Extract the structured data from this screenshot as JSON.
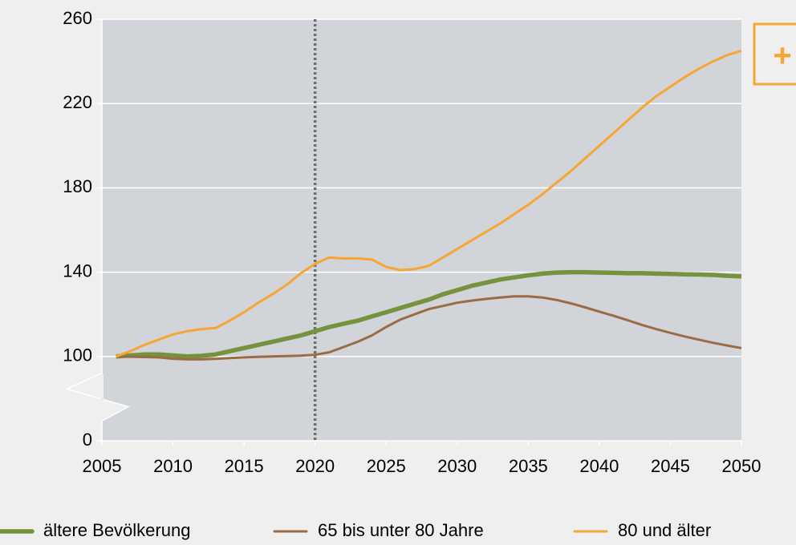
{
  "chart_data": {
    "type": "line",
    "x": [
      2006,
      2007,
      2008,
      2009,
      2010,
      2011,
      2012,
      2013,
      2014,
      2015,
      2016,
      2017,
      2018,
      2019,
      2020,
      2021,
      2022,
      2023,
      2024,
      2025,
      2026,
      2027,
      2028,
      2029,
      2030,
      2031,
      2032,
      2033,
      2034,
      2035,
      2036,
      2037,
      2038,
      2039,
      2040,
      2041,
      2042,
      2043,
      2044,
      2045,
      2046,
      2047,
      2048,
      2049,
      2050
    ],
    "series": [
      {
        "name": "ältere Bevölkerung",
        "color": "#76923c",
        "values": [
          100,
          100.5,
          101,
          101,
          100.5,
          100,
          100.3,
          101,
          102.5,
          104,
          105.5,
          107,
          108.5,
          110,
          112,
          114,
          115.5,
          117,
          119,
          121,
          123,
          125,
          127,
          129.5,
          131.5,
          133.5,
          135,
          136.5,
          137.5,
          138.5,
          139.3,
          139.8,
          140,
          140,
          139.8,
          139.7,
          139.5,
          139.5,
          139.3,
          139.2,
          139,
          138.9,
          138.7,
          138.3,
          138
        ]
      },
      {
        "name": "65 bis unter 80 Jahre",
        "color": "#9b6b43",
        "values": [
          100,
          99.7,
          99.3,
          99,
          97.3,
          96.6,
          96.6,
          97.2,
          98.2,
          99,
          99.5,
          100,
          100.2,
          100.4,
          100.8,
          102,
          104.5,
          107,
          110,
          114,
          117.5,
          120,
          122.5,
          124,
          125.5,
          126.5,
          127.3,
          128,
          128.5,
          128.5,
          128,
          126.8,
          125.2,
          123.3,
          121.3,
          119.3,
          117.2,
          115,
          113,
          111.2,
          109.5,
          108,
          106.5,
          105.2,
          104
        ]
      },
      {
        "name": "80 und älter",
        "color": "#f7a533",
        "values": [
          100,
          102.5,
          105.5,
          108,
          110.5,
          112,
          113,
          113.5,
          117,
          121,
          125.5,
          129.5,
          134,
          139.5,
          144,
          147,
          146.5,
          146.5,
          146,
          142.5,
          141,
          141.5,
          143,
          147,
          151,
          155,
          159,
          163,
          167.5,
          172,
          177,
          182.5,
          188,
          194,
          200,
          206,
          212,
          218,
          223.5,
          228,
          232.5,
          236.5,
          240,
          243,
          245
        ]
      }
    ],
    "xlim": [
      2005,
      2050
    ],
    "xticks": [
      2005,
      2010,
      2015,
      2020,
      2025,
      2030,
      2035,
      2040,
      2045,
      2050
    ],
    "ylim": [
      0,
      260
    ],
    "yticks": [
      0,
      100,
      140,
      180,
      220,
      260
    ],
    "y_break": true,
    "grid": true,
    "reference_x": 2020,
    "annotation": "+"
  }
}
